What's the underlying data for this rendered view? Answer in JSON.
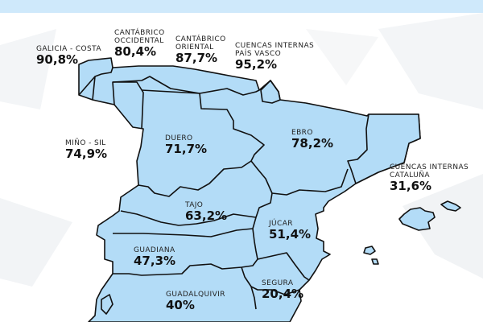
{
  "map": {
    "fill_color": "#b3dcf7",
    "stroke_color": "#111111",
    "header_color": "#cfe9fb"
  },
  "basins": [
    {
      "id": "galicia-costa",
      "name": "GALICIA - COSTA",
      "value": "90,8%"
    },
    {
      "id": "cantabrico-occidental",
      "name": "CANTÁBRICO\nOCCIDENTAL",
      "value": "80,4%"
    },
    {
      "id": "cantabrico-oriental",
      "name": "CANTÁBRICO\nORIENTAL",
      "value": "87,7%"
    },
    {
      "id": "cuencas-internas-pais-vasco",
      "name": "CUENCAS INTERNAS\nPAÍS VASCO",
      "value": "95,2%"
    },
    {
      "id": "mino-sil",
      "name": "MIÑO - SIL",
      "value": "74,9%"
    },
    {
      "id": "duero",
      "name": "DUERO",
      "value": "71,7%"
    },
    {
      "id": "ebro",
      "name": "EBRO",
      "value": "78,2%"
    },
    {
      "id": "cuencas-internas-cataluna",
      "name": "CUENCAS INTERNAS\nCATALUÑA",
      "value": "31,6%"
    },
    {
      "id": "tajo",
      "name": "TAJO",
      "value": "63,2%"
    },
    {
      "id": "jucar",
      "name": "JÚCAR",
      "value": "51,4%"
    },
    {
      "id": "guadiana",
      "name": "GUADIANA",
      "value": "47,3%"
    },
    {
      "id": "segura",
      "name": "SEGURA",
      "value": "20,4%"
    },
    {
      "id": "guadalquivir",
      "name": "GUADALQUIVIR",
      "value": "40%"
    }
  ]
}
